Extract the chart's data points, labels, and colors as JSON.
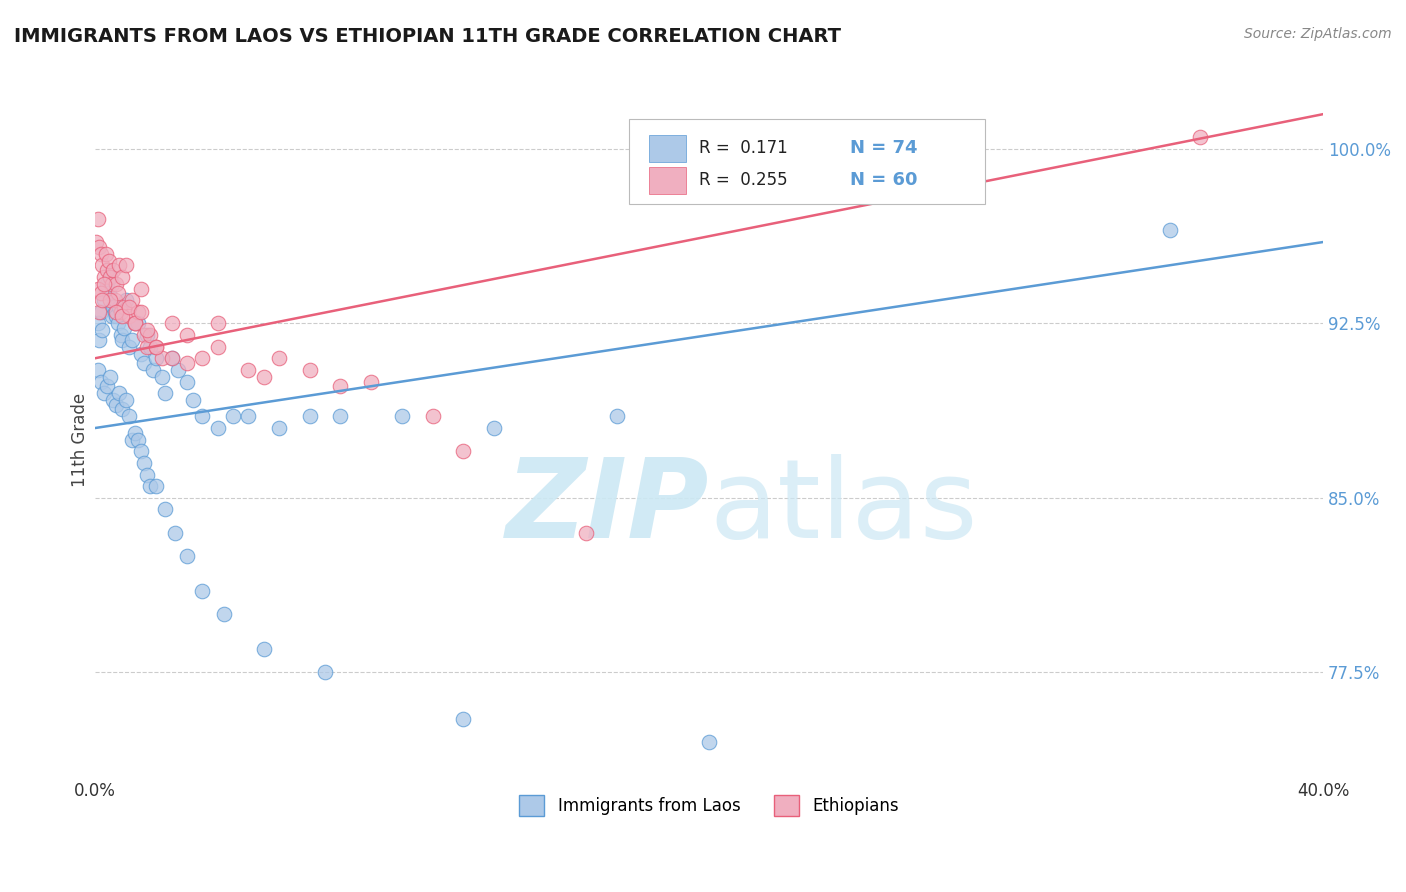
{
  "title": "IMMIGRANTS FROM LAOS VS ETHIOPIAN 11TH GRADE CORRELATION CHART",
  "source_text": "Source: ZipAtlas.com",
  "xlabel_laos": "Immigrants from Laos",
  "xlabel_ethiopians": "Ethiopians",
  "ylabel": "11th Grade",
  "xlim": [
    0.0,
    40.0
  ],
  "ylim": [
    73.0,
    102.0
  ],
  "yticks": [
    77.5,
    85.0,
    92.5,
    100.0
  ],
  "ytick_labels": [
    "77.5%",
    "85.0%",
    "92.5%",
    "100.0%"
  ],
  "xticks": [
    0.0,
    40.0
  ],
  "xtick_labels": [
    "0.0%",
    "40.0%"
  ],
  "color_laos": "#adc9e8",
  "color_ethiopians": "#f0afc0",
  "line_color_laos": "#5b9bd5",
  "line_color_ethiopians": "#e8607a",
  "R_laos": 0.171,
  "N_laos": 74,
  "R_ethiopians": 0.255,
  "N_ethiopians": 60,
  "watermark_color": "#cce8f4",
  "laos_line_x0": 0.0,
  "laos_line_y0": 88.0,
  "laos_line_x1": 40.0,
  "laos_line_y1": 96.0,
  "eth_line_x0": 0.0,
  "eth_line_y0": 91.0,
  "eth_line_x1": 40.0,
  "eth_line_y1": 101.5,
  "laos_x": [
    0.1,
    0.15,
    0.2,
    0.25,
    0.3,
    0.35,
    0.4,
    0.45,
    0.5,
    0.55,
    0.6,
    0.65,
    0.7,
    0.75,
    0.8,
    0.85,
    0.9,
    0.95,
    1.0,
    1.1,
    1.2,
    1.3,
    1.4,
    1.5,
    1.6,
    1.7,
    1.8,
    1.9,
    2.0,
    2.2,
    2.3,
    2.5,
    2.7,
    3.0,
    3.2,
    3.5,
    4.0,
    4.5,
    5.0,
    6.0,
    7.0,
    8.0,
    10.0,
    13.0,
    17.0,
    0.1,
    0.2,
    0.3,
    0.4,
    0.5,
    0.6,
    0.7,
    0.8,
    0.9,
    1.0,
    1.1,
    1.2,
    1.3,
    1.4,
    1.5,
    1.6,
    1.7,
    1.8,
    2.0,
    2.3,
    2.6,
    3.0,
    3.5,
    4.2,
    5.5,
    7.5,
    12.0,
    20.0,
    35.0
  ],
  "laos_y": [
    92.5,
    91.8,
    93.0,
    92.2,
    93.5,
    94.0,
    94.2,
    93.8,
    94.5,
    92.8,
    93.2,
    93.0,
    92.8,
    92.5,
    93.2,
    92.0,
    91.8,
    92.3,
    93.5,
    91.5,
    91.8,
    92.5,
    92.5,
    91.2,
    90.8,
    92.0,
    91.5,
    90.5,
    91.0,
    90.2,
    89.5,
    91.0,
    90.5,
    90.0,
    89.2,
    88.5,
    88.0,
    88.5,
    88.5,
    88.0,
    88.5,
    88.5,
    88.5,
    88.0,
    88.5,
    90.5,
    90.0,
    89.5,
    89.8,
    90.2,
    89.2,
    89.0,
    89.5,
    88.8,
    89.2,
    88.5,
    87.5,
    87.8,
    87.5,
    87.0,
    86.5,
    86.0,
    85.5,
    85.5,
    84.5,
    83.5,
    82.5,
    81.0,
    80.0,
    78.5,
    77.5,
    75.5,
    74.5,
    96.5
  ],
  "ethiopians_x": [
    0.05,
    0.1,
    0.15,
    0.2,
    0.25,
    0.3,
    0.35,
    0.4,
    0.45,
    0.5,
    0.55,
    0.6,
    0.65,
    0.7,
    0.75,
    0.8,
    0.85,
    0.9,
    0.95,
    1.0,
    1.1,
    1.2,
    1.3,
    1.4,
    1.5,
    1.6,
    1.7,
    1.8,
    2.0,
    2.2,
    2.5,
    3.0,
    3.5,
    4.0,
    5.0,
    6.0,
    7.0,
    9.0,
    12.0,
    16.0,
    0.1,
    0.2,
    0.3,
    0.5,
    0.7,
    0.9,
    1.1,
    1.3,
    1.5,
    1.7,
    2.0,
    2.5,
    3.0,
    4.0,
    5.5,
    8.0,
    11.0,
    0.15,
    0.25,
    36.0
  ],
  "ethiopians_y": [
    96.0,
    97.0,
    95.8,
    95.5,
    95.0,
    94.5,
    95.5,
    94.8,
    95.2,
    94.5,
    94.2,
    94.8,
    93.5,
    94.2,
    93.8,
    95.0,
    93.0,
    94.5,
    93.2,
    95.0,
    92.8,
    93.5,
    92.5,
    93.0,
    94.0,
    92.0,
    91.5,
    92.0,
    91.5,
    91.0,
    92.5,
    92.0,
    91.0,
    92.5,
    90.5,
    91.0,
    90.5,
    90.0,
    87.0,
    83.5,
    94.0,
    93.8,
    94.2,
    93.5,
    93.0,
    92.8,
    93.2,
    92.5,
    93.0,
    92.2,
    91.5,
    91.0,
    90.8,
    91.5,
    90.2,
    89.8,
    88.5,
    93.0,
    93.5,
    100.5
  ]
}
